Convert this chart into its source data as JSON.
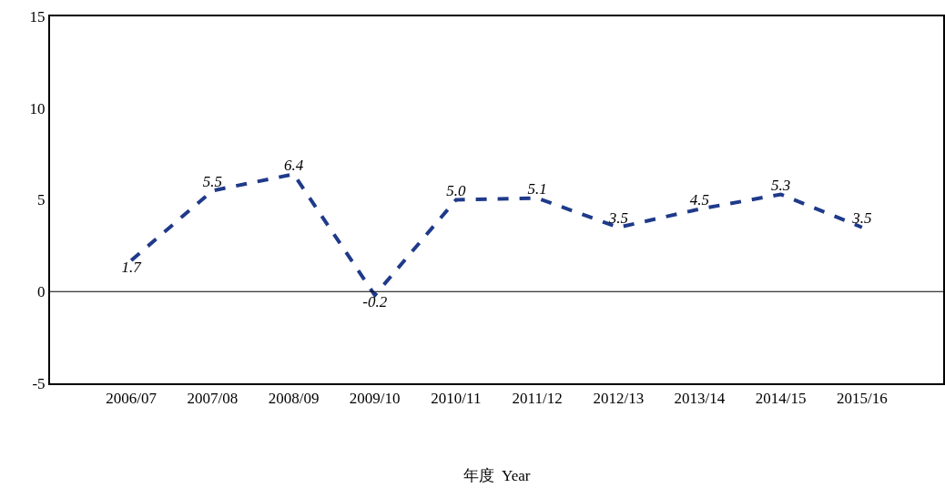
{
  "chart_data": {
    "type": "line",
    "xlabel": "年度  Year",
    "categories": [
      "2006/07",
      "2007/08",
      "2008/09",
      "2009/10",
      "2010/11",
      "2011/12",
      "2012/13",
      "2013/14",
      "2014/15",
      "2015/16"
    ],
    "series": [
      {
        "color": "#1f3a8a",
        "values": [
          1.7,
          5.5,
          6.4,
          -0.2,
          5.0,
          5.1,
          3.5,
          4.5,
          5.3,
          3.5
        ],
        "value_labels": [
          "1.7",
          "5.5",
          "6.4",
          "-0.2",
          "5.0",
          "5.1",
          "3.5",
          "4.5",
          "5.3",
          "3.5"
        ]
      }
    ],
    "ref_lines": [
      {
        "axis": "y",
        "value": 0,
        "color": "#000000"
      }
    ],
    "ylim": [
      -5,
      15
    ],
    "yticks": [
      -5,
      0,
      5,
      10,
      15
    ],
    "grid": false,
    "legend": false,
    "marker": "none",
    "line_style": "dashed"
  }
}
